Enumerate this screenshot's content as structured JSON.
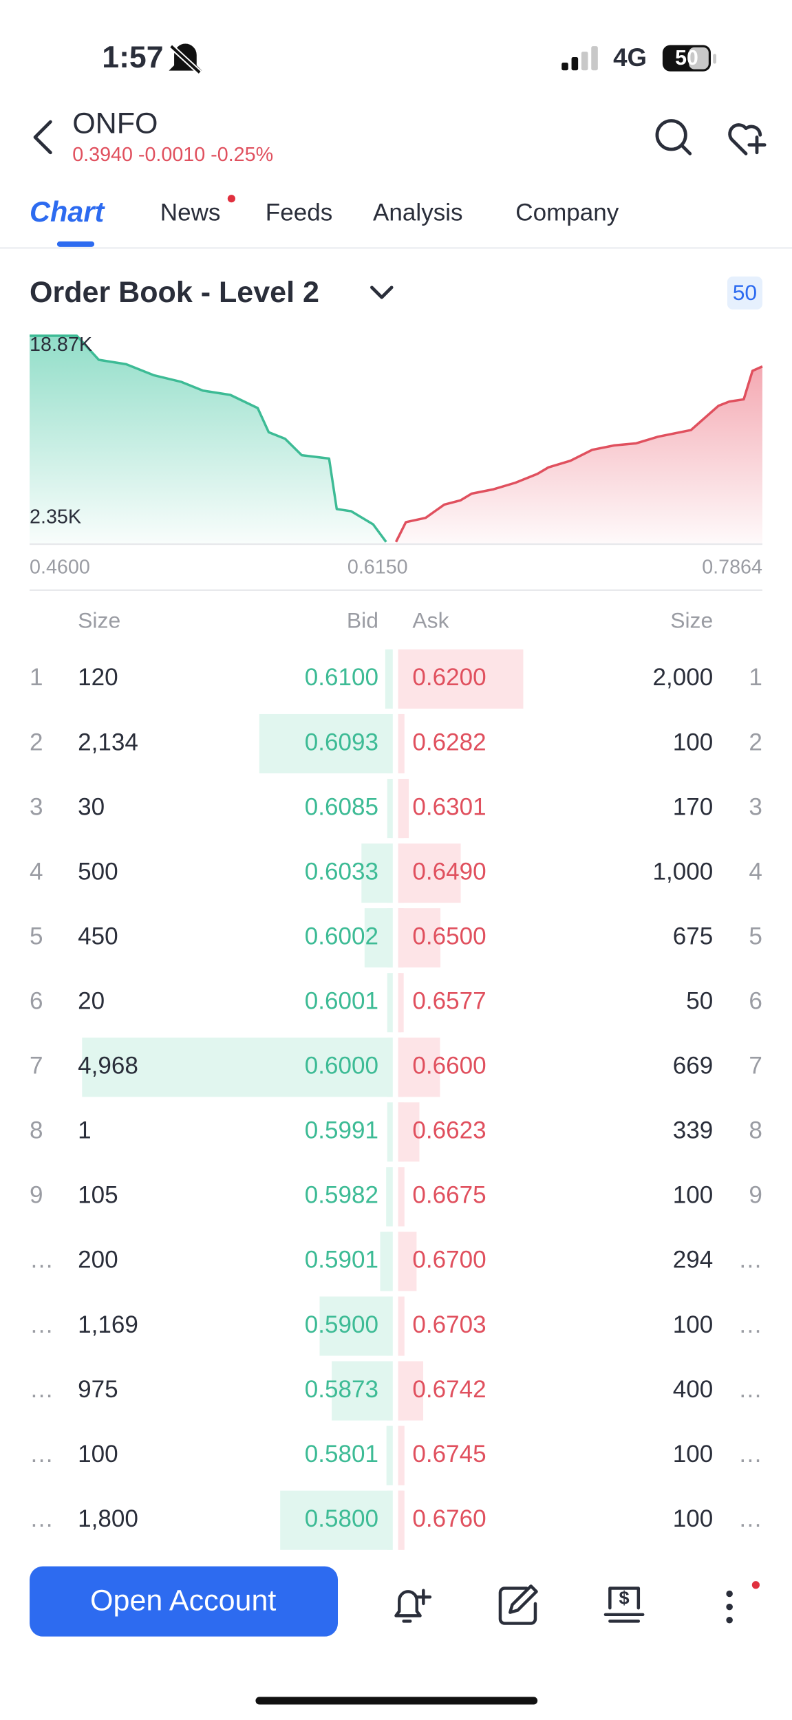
{
  "status_bar": {
    "time": "1:57",
    "network": "4G",
    "battery": "50"
  },
  "header": {
    "symbol": "ONFO",
    "quote": "0.3940 -0.0010 -0.25%"
  },
  "tabs": [
    "Chart",
    "News",
    "Feeds",
    "Analysis",
    "Company"
  ],
  "section": {
    "title": "Order Book - Level 2",
    "depth": "50"
  },
  "chart_data": {
    "type": "area",
    "series": [
      {
        "color": "#3dbb95",
        "x": [
          0.46,
          0.481,
          0.4908,
          0.503,
          0.5152,
          0.5274,
          0.5372,
          0.5494,
          0.5616,
          0.5665,
          0.5738,
          0.5812,
          0.5934,
          0.5968,
          0.6032,
          0.613,
          0.6188
        ],
        "values": [
          18870,
          18870,
          16690,
          16290,
          15300,
          14700,
          13900,
          13510,
          12320,
          10130,
          9540,
          8050,
          7750,
          3180,
          2980,
          1790,
          200
        ]
      },
      {
        "color": "#e0505e",
        "x": [
          0.6232,
          0.6276,
          0.6364,
          0.6447,
          0.652,
          0.6569,
          0.6667,
          0.6764,
          0.6862,
          0.6911,
          0.7009,
          0.7106,
          0.7204,
          0.7302,
          0.74,
          0.7546,
          0.7668,
          0.7717,
          0.7781,
          0.782,
          0.7864
        ],
        "values": [
          200,
          1990,
          2380,
          3580,
          3970,
          4570,
          4970,
          5560,
          6360,
          6950,
          7550,
          8540,
          8940,
          9130,
          9730,
          10330,
          12520,
          12910,
          13110,
          15690,
          16090
        ]
      }
    ],
    "xlim": [
      0.46,
      0.7864
    ],
    "xticks": [
      {
        "value": 0.46,
        "label": "0.4600"
      },
      {
        "value": 0.615,
        "label": "0.6150"
      },
      0.7864
    ],
    "ylim": [
      0,
      18870
    ],
    "yticks": [
      {
        "value": 18870,
        "label": "18.87K"
      },
      {
        "value": 2350,
        "label": "2.35K"
      }
    ]
  },
  "order_book": {
    "columns": [
      "Size",
      "Bid",
      "Ask",
      "Size"
    ],
    "rows": [
      {
        "level": "1",
        "bid_size": 120,
        "bid": "0.6100",
        "ask": "0.6200",
        "ask_size": {
          "value": 2000,
          "label": "2,000"
        }
      },
      {
        "level": "2",
        "bid_size": {
          "value": 2134,
          "label": "2,134"
        },
        "bid": "0.6093",
        "ask": "0.6282",
        "ask_size": 100
      },
      {
        "level": "3",
        "bid_size": 30,
        "bid": "0.6085",
        "ask": "0.6301",
        "ask_size": 170
      },
      {
        "level": "4",
        "bid_size": 500,
        "bid": "0.6033",
        "ask": "0.6490",
        "ask_size": {
          "value": 1000,
          "label": "1,000"
        }
      },
      {
        "level": "5",
        "bid_size": 450,
        "bid": "0.6002",
        "ask": "0.6500",
        "ask_size": 675
      },
      {
        "level": "6",
        "bid_size": 20,
        "bid": "0.6001",
        "ask": "0.6577",
        "ask_size": 50
      },
      {
        "level": "7",
        "bid_size": {
          "value": 4968,
          "label": "4,968"
        },
        "bid": "0.6000",
        "ask": "0.6600",
        "ask_size": 669
      },
      {
        "level": "8",
        "bid_size": 1,
        "bid": "0.5991",
        "ask": "0.6623",
        "ask_size": 339
      },
      {
        "level": "9",
        "bid_size": 105,
        "bid": "0.5982",
        "ask": "0.6675",
        "ask_size": 100
      },
      {
        "level": "…",
        "bid_size": 200,
        "bid": "0.5901",
        "ask": "0.6700",
        "ask_size": 294
      },
      {
        "level": "…",
        "bid_size": {
          "value": 1169,
          "label": "1,169"
        },
        "bid": "0.5900",
        "ask": "0.6703",
        "ask_size": 100
      },
      {
        "level": "…",
        "bid_size": 975,
        "bid": "0.5873",
        "ask": "0.6742",
        "ask_size": 400
      },
      {
        "level": "…",
        "bid_size": 100,
        "bid": "0.5801",
        "ask": "0.6745",
        "ask_size": 100
      },
      {
        "level": "…",
        "bid_size": {
          "value": 1800,
          "label": "1,800"
        },
        "bid": "0.5800",
        "ask": "0.6760",
        "ask_size": 100
      }
    ]
  },
  "footer": {
    "button": "Open Account"
  }
}
